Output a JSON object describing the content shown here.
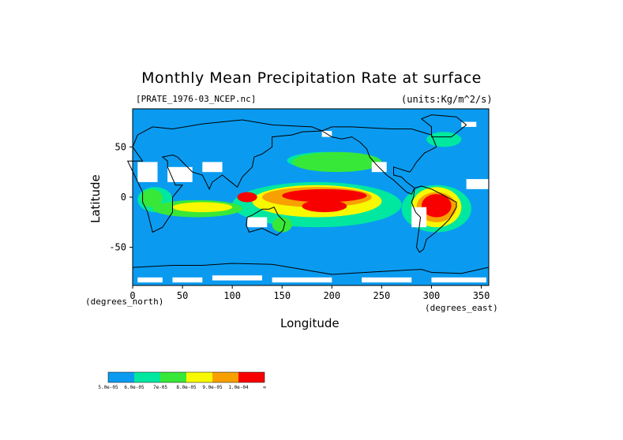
{
  "chart_data": {
    "type": "heatmap",
    "title": "Monthly Mean Precipitation Rate at surface",
    "subtitle_left": "[PRATE_1976-03_NCEP.nc]",
    "subtitle_right": "(units:Kg/m^2/s)",
    "xlabel": "Longitude",
    "ylabel": "Latitude",
    "x_unit_note": "(degrees_east)",
    "y_unit_note": "(degrees_north)",
    "xlim": [
      0,
      357.5
    ],
    "ylim": [
      -88,
      88
    ],
    "x_ticks": [
      0,
      50,
      100,
      150,
      200,
      250,
      300,
      350
    ],
    "x_tick_labels": [
      "0",
      "50",
      "100",
      "150",
      "200",
      "250",
      "300",
      "350"
    ],
    "y_ticks": [
      50,
      0,
      -50
    ],
    "y_tick_labels": [
      "50",
      "0",
      "-50"
    ],
    "colorbar": {
      "colors": [
        "#0a9bf0",
        "#00e8a0",
        "#38e838",
        "#f8f800",
        "#f8a000",
        "#f80000"
      ],
      "labels": [
        "5.0e-05",
        "6.0e-05",
        "7e-05",
        "8.0e-05",
        "9.0e-05",
        "1.0e-04",
        "∞"
      ]
    },
    "regions": [
      {
        "level": 5,
        "lon": [
          150,
          235
        ],
        "lat": [
          -5,
          8
        ]
      },
      {
        "level": 5,
        "lon": [
          170,
          215
        ],
        "lat": [
          -15,
          -3
        ]
      },
      {
        "level": 5,
        "lon": [
          290,
          320
        ],
        "lat": [
          -20,
          3
        ]
      },
      {
        "level": 5,
        "lon": [
          105,
          125
        ],
        "lat": [
          -5,
          5
        ]
      },
      {
        "level": 4,
        "lon": [
          130,
          240
        ],
        "lat": [
          -10,
          10
        ]
      },
      {
        "level": 4,
        "lon": [
          285,
          325
        ],
        "lat": [
          -25,
          5
        ]
      },
      {
        "level": 3,
        "lon": [
          120,
          250
        ],
        "lat": [
          -20,
          12
        ]
      },
      {
        "level": 3,
        "lon": [
          40,
          100
        ],
        "lat": [
          -15,
          -5
        ]
      },
      {
        "level": 3,
        "lon": [
          280,
          330
        ],
        "lat": [
          -30,
          10
        ]
      },
      {
        "level": 2,
        "lon": [
          20,
          110
        ],
        "lat": [
          -20,
          -3
        ]
      },
      {
        "level": 2,
        "lon": [
          160,
          250
        ],
        "lat": [
          25,
          45
        ]
      },
      {
        "level": 2,
        "lon": [
          8,
          30
        ],
        "lat": [
          -10,
          8
        ]
      },
      {
        "level": 2,
        "lon": [
          140,
          160
        ],
        "lat": [
          -35,
          -20
        ]
      },
      {
        "level": 1,
        "lon": [
          100,
          270
        ],
        "lat": [
          -30,
          15
        ]
      },
      {
        "level": 1,
        "lon": [
          155,
          235
        ],
        "lat": [
          28,
          45
        ]
      },
      {
        "level": 1,
        "lon": [
          5,
          40
        ],
        "lat": [
          -15,
          10
        ]
      },
      {
        "level": 1,
        "lon": [
          270,
          340
        ],
        "lat": [
          -35,
          12
        ]
      },
      {
        "level": 1,
        "lon": [
          295,
          330
        ],
        "lat": [
          50,
          65
        ]
      }
    ],
    "dry_regions": [
      {
        "lon": [
          5,
          25
        ],
        "lat": [
          15,
          35
        ]
      },
      {
        "lon": [
          35,
          60
        ],
        "lat": [
          15,
          30
        ]
      },
      {
        "lon": [
          70,
          90
        ],
        "lat": [
          25,
          35
        ]
      },
      {
        "lon": [
          115,
          135
        ],
        "lat": [
          -30,
          -20
        ]
      },
      {
        "lon": [
          240,
          255
        ],
        "lat": [
          25,
          35
        ]
      },
      {
        "lon": [
          280,
          295
        ],
        "lat": [
          -30,
          -10
        ]
      },
      {
        "lon": [
          5,
          30
        ],
        "lat": [
          -85,
          -80
        ]
      },
      {
        "lon": [
          40,
          70
        ],
        "lat": [
          -85,
          -80
        ]
      },
      {
        "lon": [
          80,
          130
        ],
        "lat": [
          -83,
          -78
        ]
      },
      {
        "lon": [
          140,
          200
        ],
        "lat": [
          -85,
          -80
        ]
      },
      {
        "lon": [
          230,
          280
        ],
        "lat": [
          -85,
          -80
        ]
      },
      {
        "lon": [
          300,
          355
        ],
        "lat": [
          -85,
          -80
        ]
      },
      {
        "lon": [
          190,
          200
        ],
        "lat": [
          60,
          66
        ]
      },
      {
        "lon": [
          330,
          345
        ],
        "lat": [
          70,
          75
        ]
      },
      {
        "lon": [
          335,
          357
        ],
        "lat": [
          8,
          18
        ]
      }
    ]
  }
}
